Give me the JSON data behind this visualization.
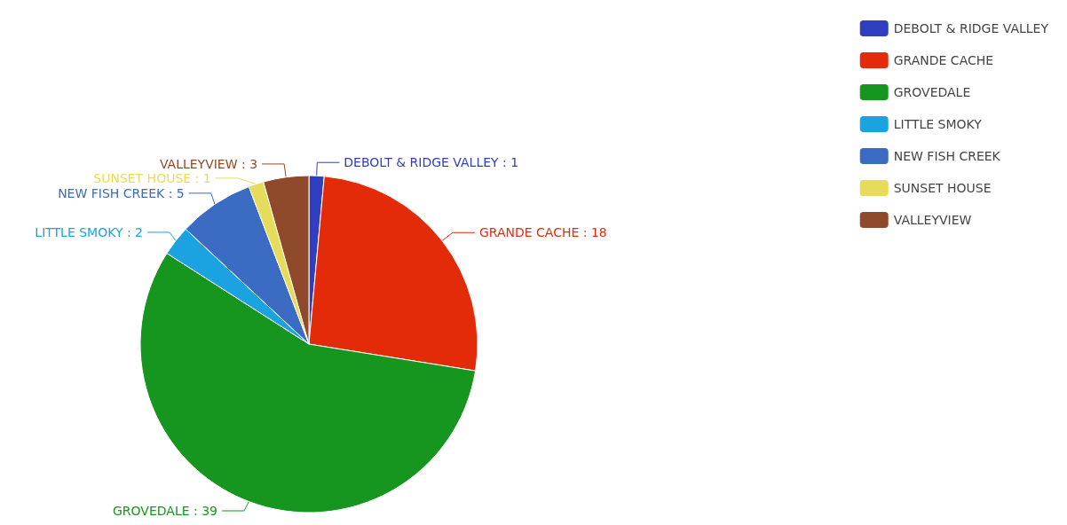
{
  "chart_data": {
    "type": "pie",
    "categories": [
      "DEBOLT & RIDGE VALLEY",
      "GRANDE CACHE",
      "GROVEDALE",
      "LITTLE SMOKY",
      "NEW FISH CREEK",
      "SUNSET HOUSE",
      "VALLEYVIEW"
    ],
    "values": [
      1,
      18,
      39,
      2,
      5,
      1,
      3
    ],
    "colors": [
      "#2f3fbf",
      "#e32b0a",
      "#16961e",
      "#1aa3e0",
      "#3b6bc2",
      "#e6dc5a",
      "#8f4a2c"
    ],
    "value_labels": [
      ": 1",
      ": 18",
      ": 39",
      ": 2",
      ": 5",
      ": 1",
      ": 3"
    ],
    "legend": "top right"
  }
}
